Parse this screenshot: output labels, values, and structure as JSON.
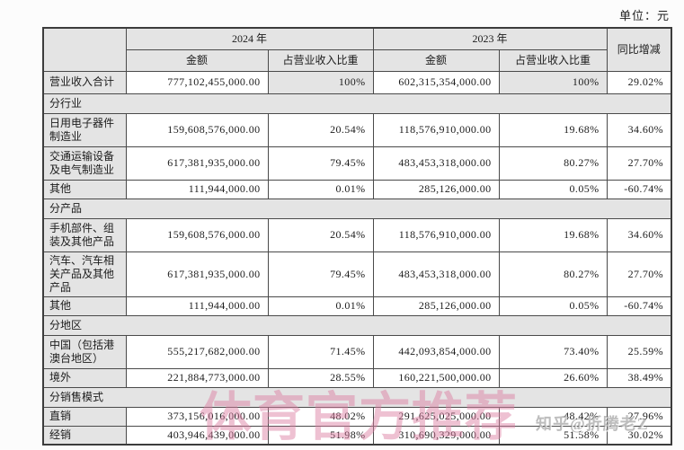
{
  "page": {
    "unit_label": "单位：元"
  },
  "colors": {
    "header_bg": "#e4e4e4",
    "border": "#4a4a4a",
    "watermark_pink": "#db7da0",
    "watermark_gray": "#878787"
  },
  "watermarks": {
    "pink": "体育官方推荐",
    "gray": "知乎@折腾老Z"
  },
  "table": {
    "header": {
      "year_2024": "2024 年",
      "year_2023": "2023 年",
      "yoy": "同比增减",
      "amount_2024": "金额",
      "share_2024": "占营业收入比重",
      "amount_2023": "金额",
      "share_2023": "占营业收入比重"
    },
    "rows": [
      {
        "type": "data",
        "size": "first",
        "shade_share": true,
        "label": "营业收入合计",
        "a2024": "777,102,455,000.00",
        "s2024": "100%",
        "a2023": "602,315,354,000.00",
        "s2023": "100%",
        "yoy": "29.02%"
      },
      {
        "type": "section",
        "label": "分行业"
      },
      {
        "type": "data",
        "size": "tall",
        "label": "日用电子器件制造业",
        "a2024": "159,608,576,000.00",
        "s2024": "20.54%",
        "a2023": "118,576,910,000.00",
        "s2023": "19.68%",
        "yoy": "34.60%"
      },
      {
        "type": "data",
        "size": "tall",
        "label": "交通运输设备及电气制造业",
        "a2024": "617,381,935,000.00",
        "s2024": "79.45%",
        "a2023": "483,453,318,000.00",
        "s2023": "80.27%",
        "yoy": "27.70%"
      },
      {
        "type": "data",
        "size": "single",
        "label": "其他",
        "a2024": "111,944,000.00",
        "s2024": "0.01%",
        "a2023": "285,126,000.00",
        "s2023": "0.05%",
        "yoy": "-60.74%"
      },
      {
        "type": "section",
        "label": "分产品"
      },
      {
        "type": "data",
        "size": "tall",
        "label": "手机部件、组装及其他产品",
        "a2024": "159,608,576,000.00",
        "s2024": "20.54%",
        "a2023": "118,576,910,000.00",
        "s2023": "19.68%",
        "yoy": "34.60%"
      },
      {
        "type": "data",
        "size": "tall",
        "label": "汽车、汽车相关产品及其他产品",
        "a2024": "617,381,935,000.00",
        "s2024": "79.45%",
        "a2023": "483,453,318,000.00",
        "s2023": "80.27%",
        "yoy": "27.70%"
      },
      {
        "type": "data",
        "size": "single",
        "label": "其他",
        "a2024": "111,944,000.00",
        "s2024": "0.01%",
        "a2023": "285,126,000.00",
        "s2023": "0.05%",
        "yoy": "-60.74%"
      },
      {
        "type": "section",
        "label": "分地区"
      },
      {
        "type": "data",
        "size": "tall",
        "label": "中国（包括港澳台地区）",
        "a2024": "555,217,682,000.00",
        "s2024": "71.45%",
        "a2023": "442,093,854,000.00",
        "s2023": "73.40%",
        "yoy": "25.59%"
      },
      {
        "type": "data",
        "size": "single",
        "label": "境外",
        "a2024": "221,884,773,000.00",
        "s2024": "28.55%",
        "a2023": "160,221,500,000.00",
        "s2023": "26.60%",
        "yoy": "38.49%"
      },
      {
        "type": "section",
        "label": "分销售模式"
      },
      {
        "type": "data",
        "size": "single",
        "label": "直销",
        "a2024": "373,156,016,000.00",
        "s2024": "48.02%",
        "a2023": "291,625,025,000.00",
        "s2023": "48.42%",
        "yoy": "27.96%"
      },
      {
        "type": "data",
        "size": "single",
        "label": "经销",
        "a2024": "403,946,439,000.00",
        "s2024": "51.98%",
        "a2023": "310,690,329,000.00",
        "s2023": "51.58%",
        "yoy": "30.02%"
      }
    ]
  }
}
